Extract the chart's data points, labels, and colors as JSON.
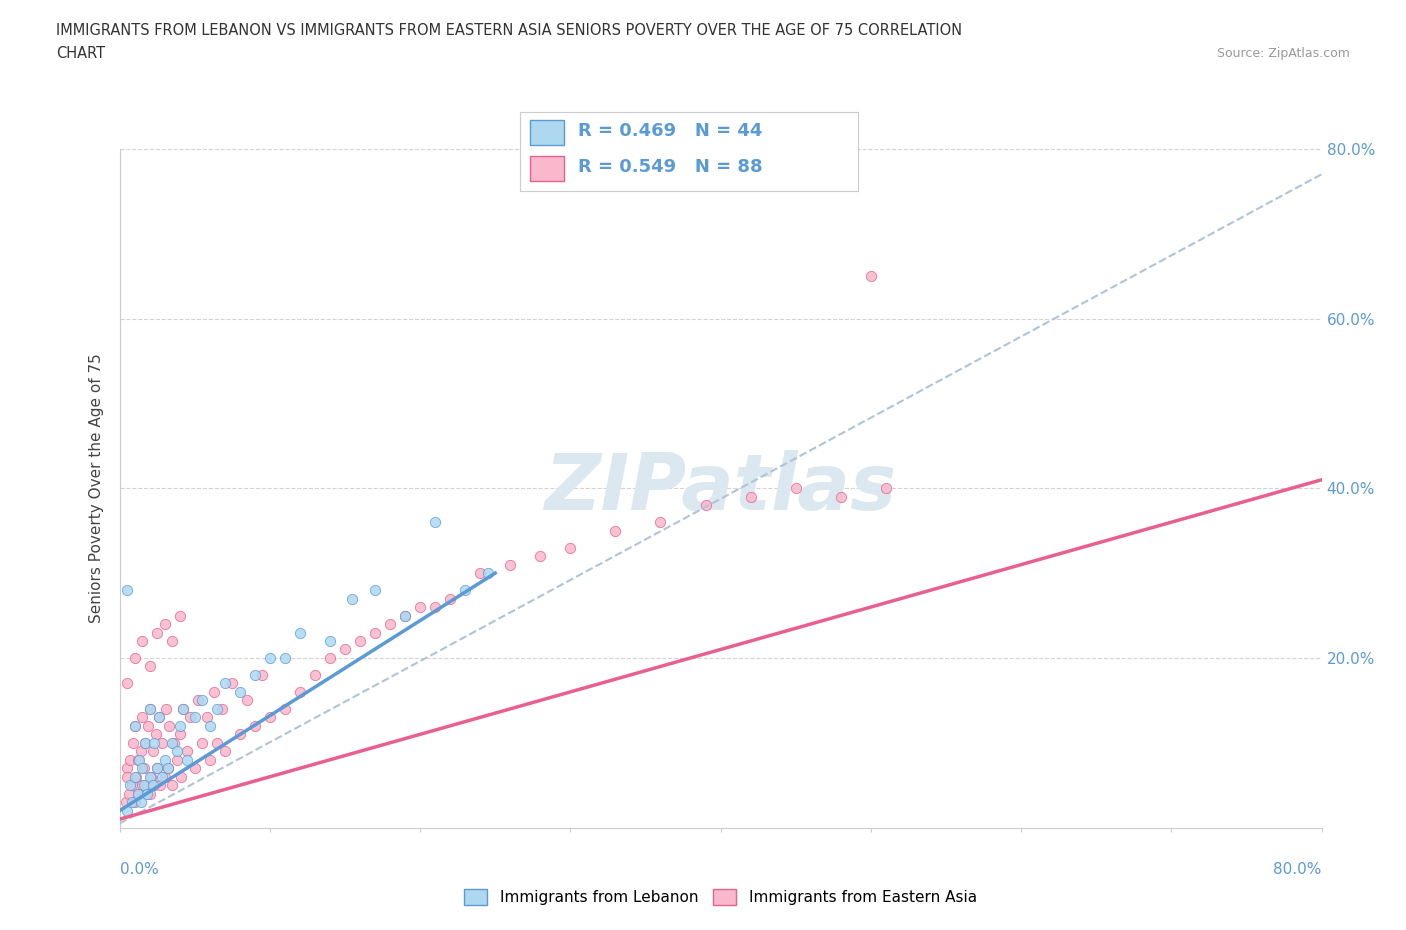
{
  "title_line1": "IMMIGRANTS FROM LEBANON VS IMMIGRANTS FROM EASTERN ASIA SENIORS POVERTY OVER THE AGE OF 75 CORRELATION",
  "title_line2": "CHART",
  "source_text": "Source: ZipAtlas.com",
  "ylabel": "Seniors Poverty Over the Age of 75",
  "legend1_label": "Immigrants from Lebanon",
  "legend2_label": "Immigrants from Eastern Asia",
  "r1": 0.469,
  "n1": 44,
  "r2": 0.549,
  "n2": 88,
  "color_lebanon": "#add8f0",
  "color_eastern_asia": "#f9b8cc",
  "color_trendline_lebanon": "#5b9bd5",
  "color_trendline_eastern_asia": "#e86090",
  "color_trendline_dashed": "#b0c4d8",
  "watermark_color": "#dce8f0",
  "background_color": "#ffffff",
  "xlim": [
    0.0,
    0.8
  ],
  "ylim": [
    0.0,
    0.8
  ],
  "leb_trendline_x": [
    0.0,
    0.25
  ],
  "leb_trendline_y": [
    0.02,
    0.3
  ],
  "ea_trendline_x": [
    0.0,
    0.8
  ],
  "ea_trendline_y": [
    0.01,
    0.41
  ],
  "dashed_trendline_x": [
    0.0,
    0.8
  ],
  "dashed_trendline_y": [
    0.005,
    0.77
  ],
  "scatter_lebanon_x": [
    0.005,
    0.007,
    0.008,
    0.01,
    0.01,
    0.012,
    0.013,
    0.014,
    0.015,
    0.016,
    0.017,
    0.018,
    0.02,
    0.02,
    0.022,
    0.023,
    0.025,
    0.026,
    0.028,
    0.03,
    0.032,
    0.035,
    0.038,
    0.04,
    0.042,
    0.045,
    0.05,
    0.055,
    0.06,
    0.065,
    0.07,
    0.08,
    0.09,
    0.1,
    0.11,
    0.12,
    0.14,
    0.155,
    0.17,
    0.19,
    0.21,
    0.23,
    0.245,
    0.005
  ],
  "scatter_lebanon_y": [
    0.02,
    0.05,
    0.03,
    0.06,
    0.12,
    0.04,
    0.08,
    0.03,
    0.07,
    0.05,
    0.1,
    0.04,
    0.06,
    0.14,
    0.05,
    0.1,
    0.07,
    0.13,
    0.06,
    0.08,
    0.07,
    0.1,
    0.09,
    0.12,
    0.14,
    0.08,
    0.13,
    0.15,
    0.12,
    0.14,
    0.17,
    0.16,
    0.18,
    0.2,
    0.2,
    0.23,
    0.22,
    0.27,
    0.28,
    0.25,
    0.36,
    0.28,
    0.3,
    0.28
  ],
  "scatter_eastern_asia_x": [
    0.004,
    0.005,
    0.006,
    0.007,
    0.008,
    0.009,
    0.01,
    0.01,
    0.011,
    0.012,
    0.013,
    0.014,
    0.015,
    0.015,
    0.016,
    0.017,
    0.018,
    0.019,
    0.02,
    0.02,
    0.021,
    0.022,
    0.023,
    0.024,
    0.025,
    0.026,
    0.027,
    0.028,
    0.03,
    0.031,
    0.032,
    0.033,
    0.035,
    0.036,
    0.038,
    0.04,
    0.041,
    0.042,
    0.045,
    0.047,
    0.05,
    0.052,
    0.055,
    0.058,
    0.06,
    0.063,
    0.065,
    0.068,
    0.07,
    0.075,
    0.08,
    0.085,
    0.09,
    0.095,
    0.1,
    0.11,
    0.12,
    0.13,
    0.14,
    0.15,
    0.16,
    0.17,
    0.18,
    0.19,
    0.2,
    0.21,
    0.22,
    0.24,
    0.26,
    0.28,
    0.3,
    0.33,
    0.36,
    0.39,
    0.42,
    0.45,
    0.48,
    0.51,
    0.005,
    0.01,
    0.015,
    0.02,
    0.025,
    0.03,
    0.035,
    0.04,
    0.5,
    0.005
  ],
  "scatter_eastern_asia_y": [
    0.03,
    0.07,
    0.04,
    0.08,
    0.05,
    0.1,
    0.03,
    0.12,
    0.06,
    0.08,
    0.04,
    0.09,
    0.05,
    0.13,
    0.07,
    0.1,
    0.05,
    0.12,
    0.04,
    0.14,
    0.06,
    0.09,
    0.05,
    0.11,
    0.07,
    0.13,
    0.05,
    0.1,
    0.06,
    0.14,
    0.07,
    0.12,
    0.05,
    0.1,
    0.08,
    0.11,
    0.06,
    0.14,
    0.09,
    0.13,
    0.07,
    0.15,
    0.1,
    0.13,
    0.08,
    0.16,
    0.1,
    0.14,
    0.09,
    0.17,
    0.11,
    0.15,
    0.12,
    0.18,
    0.13,
    0.14,
    0.16,
    0.18,
    0.2,
    0.21,
    0.22,
    0.23,
    0.24,
    0.25,
    0.26,
    0.26,
    0.27,
    0.3,
    0.31,
    0.32,
    0.33,
    0.35,
    0.36,
    0.38,
    0.39,
    0.4,
    0.39,
    0.4,
    0.17,
    0.2,
    0.22,
    0.19,
    0.23,
    0.24,
    0.22,
    0.25,
    0.65,
    0.06
  ]
}
